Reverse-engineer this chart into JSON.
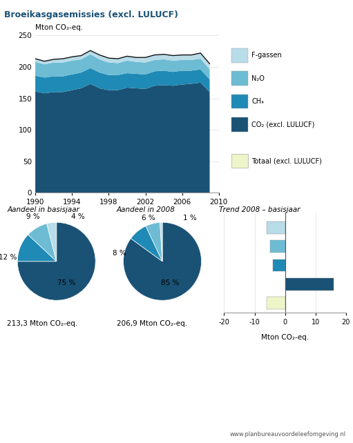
{
  "title": "Broeikasgasemissies (excl. LULUCF)",
  "title_bg": "#cde4f0",
  "area_colors": [
    "#1a5276",
    "#1f8ab5",
    "#6dbcd4",
    "#b8dce8"
  ],
  "area_labels": [
    "CO₂ (excl. LULUCF)",
    "CH₄",
    "N₂O",
    "F-gassen"
  ],
  "totaal_color": "#eef5c8",
  "totaal_label": "Totaal (excl. LULUCF)",
  "years": [
    1990,
    1991,
    1992,
    1993,
    1994,
    1995,
    1996,
    1997,
    1998,
    1999,
    2000,
    2001,
    2002,
    2003,
    2004,
    2005,
    2006,
    2007,
    2008,
    2009
  ],
  "co2": [
    161,
    158,
    160,
    160,
    163,
    166,
    173,
    166,
    163,
    163,
    167,
    166,
    165,
    170,
    171,
    170,
    172,
    173,
    175,
    160
  ],
  "ch4": [
    25,
    25,
    25,
    25,
    25,
    25,
    25,
    25,
    24,
    24,
    23,
    23,
    23,
    23,
    23,
    22,
    22,
    21,
    21,
    20
  ],
  "n2o": [
    22,
    21,
    22,
    22,
    22,
    21,
    22,
    21,
    20,
    19,
    20,
    19,
    19,
    18,
    18,
    18,
    17,
    17,
    17,
    16
  ],
  "fgas": [
    5,
    5,
    5,
    6,
    6,
    6,
    6,
    7,
    7,
    7,
    7,
    7,
    8,
    8,
    8,
    8,
    8,
    8,
    9,
    9
  ],
  "total_line": [
    213,
    209,
    212,
    213,
    216,
    218,
    226,
    219,
    214,
    213,
    217,
    215,
    215,
    219,
    220,
    218,
    219,
    219,
    222,
    205
  ],
  "ylabel_area": "Mton CO₂-eq.",
  "ylim_area": [
    0,
    250
  ],
  "yticks_area": [
    0,
    50,
    100,
    150,
    200,
    250
  ],
  "xlim_area": [
    1990,
    2010
  ],
  "xticks_area": [
    1990,
    1994,
    1998,
    2002,
    2006,
    2010
  ],
  "pie1_values": [
    75,
    12,
    9,
    4
  ],
  "pie2_values": [
    85,
    8,
    6,
    1
  ],
  "pie_colors": [
    "#1a5276",
    "#1f8ab5",
    "#6dbcd4",
    "#b8dce8"
  ],
  "pie1_title": "Aandeel in basisjaar",
  "pie2_title": "Aandeel in 2008",
  "bar_title": "Trend 2008 – basisjaar",
  "bar_values": [
    -6,
    -5,
    -4,
    16,
    -6
  ],
  "bar_colors": [
    "#b8dce8",
    "#6dbcd4",
    "#1f8ab5",
    "#1a5276",
    "#eef5c8"
  ],
  "bar_xlabel": "Mton CO₂-eq.",
  "pie1_total": "213,3 Mton CO₂-eq.",
  "pie2_total": "206,9 Mton CO₂-eq.",
  "website": "www.planbureau voor de leef omgeving.nl",
  "bg_color": "#ffffff",
  "line_color": "#111111"
}
